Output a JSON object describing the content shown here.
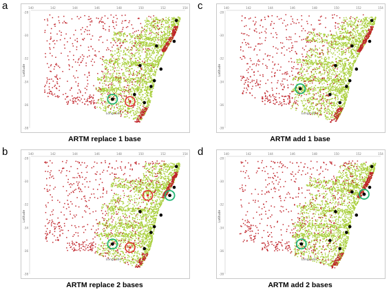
{
  "figure": {
    "panels": [
      {
        "letter": "a",
        "caption": "ARTM replace 1 base"
      },
      {
        "letter": "c",
        "caption": "ARTM add 1 base"
      },
      {
        "letter": "b",
        "caption": "ARTM replace 2 bases"
      },
      {
        "letter": "d",
        "caption": "ARTM add 2 bases"
      }
    ]
  },
  "chart_data": [
    {
      "type": "scatter",
      "title": "",
      "xlabel": "Longitude",
      "ylabel": "Latitude",
      "x_ticks": [
        "140",
        "142",
        "144",
        "146",
        "148",
        "150",
        "152",
        "154"
      ],
      "y_ticks": [
        "-28",
        "-30",
        "-32",
        "-34",
        "-36",
        "-38"
      ],
      "xlim": [
        140,
        154
      ],
      "ylim": [
        -38,
        -28
      ],
      "colors": {
        "serviced": "#a9cf3c",
        "unserviced": "#c0232a",
        "base": "#000000",
        "added": "#22b573",
        "removed": "#e0302c"
      },
      "bases": [
        [
          153.2,
          -28.7
        ],
        [
          151.4,
          -30.9
        ],
        [
          153.0,
          -30.5
        ],
        [
          149.9,
          -32.6
        ],
        [
          151.8,
          -32.9
        ],
        [
          151.2,
          -33.9
        ],
        [
          150.9,
          -34.4
        ],
        [
          149.4,
          -35.1
        ],
        [
          150.3,
          -35.8
        ]
      ],
      "added_bases": [
        [
          147.4,
          -35.5
        ]
      ],
      "removed_bases": [
        [
          149.0,
          -35.7
        ]
      ]
    },
    {
      "type": "scatter",
      "title": "",
      "xlabel": "Longitude",
      "ylabel": "Latitude",
      "x_ticks": [
        "140",
        "142",
        "144",
        "146",
        "148",
        "150",
        "152",
        "154"
      ],
      "y_ticks": [
        "-28",
        "-30",
        "-32",
        "-34",
        "-36",
        "-38"
      ],
      "xlim": [
        140,
        154
      ],
      "ylim": [
        -38,
        -28
      ],
      "colors": {
        "serviced": "#a9cf3c",
        "unserviced": "#c0232a",
        "base": "#000000",
        "added": "#22b573",
        "removed": "#e0302c"
      },
      "bases": [
        [
          153.2,
          -28.7
        ],
        [
          151.4,
          -30.9
        ],
        [
          153.0,
          -30.5
        ],
        [
          149.9,
          -32.6
        ],
        [
          151.8,
          -32.9
        ],
        [
          151.2,
          -33.9
        ],
        [
          150.9,
          -34.4
        ],
        [
          149.4,
          -35.1
        ],
        [
          150.3,
          -35.8
        ]
      ],
      "added_bases": [
        [
          146.7,
          -34.6
        ]
      ],
      "removed_bases": []
    },
    {
      "type": "scatter",
      "title": "",
      "xlabel": "Longitude",
      "ylabel": "Latitude",
      "x_ticks": [
        "140",
        "142",
        "144",
        "146",
        "148",
        "150",
        "152",
        "154"
      ],
      "y_ticks": [
        "-28",
        "-30",
        "-32",
        "-34",
        "-36",
        "-38"
      ],
      "xlim": [
        140,
        154
      ],
      "ylim": [
        -38,
        -28
      ],
      "colors": {
        "serviced": "#a9cf3c",
        "unserviced": "#c0232a",
        "base": "#000000",
        "added": "#22b573",
        "removed": "#e0302c"
      },
      "bases": [
        [
          153.2,
          -28.7
        ],
        [
          153.0,
          -30.5
        ],
        [
          149.9,
          -32.6
        ],
        [
          151.8,
          -32.9
        ],
        [
          151.2,
          -33.9
        ],
        [
          150.9,
          -34.4
        ],
        [
          150.3,
          -35.8
        ]
      ],
      "added_bases": [
        [
          147.4,
          -35.4
        ],
        [
          152.6,
          -31.2
        ]
      ],
      "removed_bases": [
        [
          149.0,
          -35.7
        ],
        [
          150.6,
          -31.2
        ]
      ]
    },
    {
      "type": "scatter",
      "title": "",
      "xlabel": "Longitude",
      "ylabel": "Latitude",
      "x_ticks": [
        "140",
        "142",
        "144",
        "146",
        "148",
        "150",
        "152",
        "154"
      ],
      "y_ticks": [
        "-28",
        "-30",
        "-32",
        "-34",
        "-36",
        "-38"
      ],
      "xlim": [
        140,
        154
      ],
      "ylim": [
        -38,
        -28
      ],
      "colors": {
        "serviced": "#a9cf3c",
        "unserviced": "#c0232a",
        "base": "#000000",
        "added": "#22b573",
        "removed": "#e0302c"
      },
      "bases": [
        [
          153.2,
          -28.7
        ],
        [
          151.4,
          -30.9
        ],
        [
          153.0,
          -30.5
        ],
        [
          149.9,
          -32.6
        ],
        [
          151.8,
          -32.9
        ],
        [
          151.2,
          -33.9
        ],
        [
          150.9,
          -34.4
        ],
        [
          149.4,
          -35.1
        ],
        [
          150.3,
          -35.8
        ]
      ],
      "added_bases": [
        [
          146.8,
          -35.4
        ],
        [
          152.5,
          -31.1
        ]
      ],
      "removed_bases": []
    }
  ]
}
